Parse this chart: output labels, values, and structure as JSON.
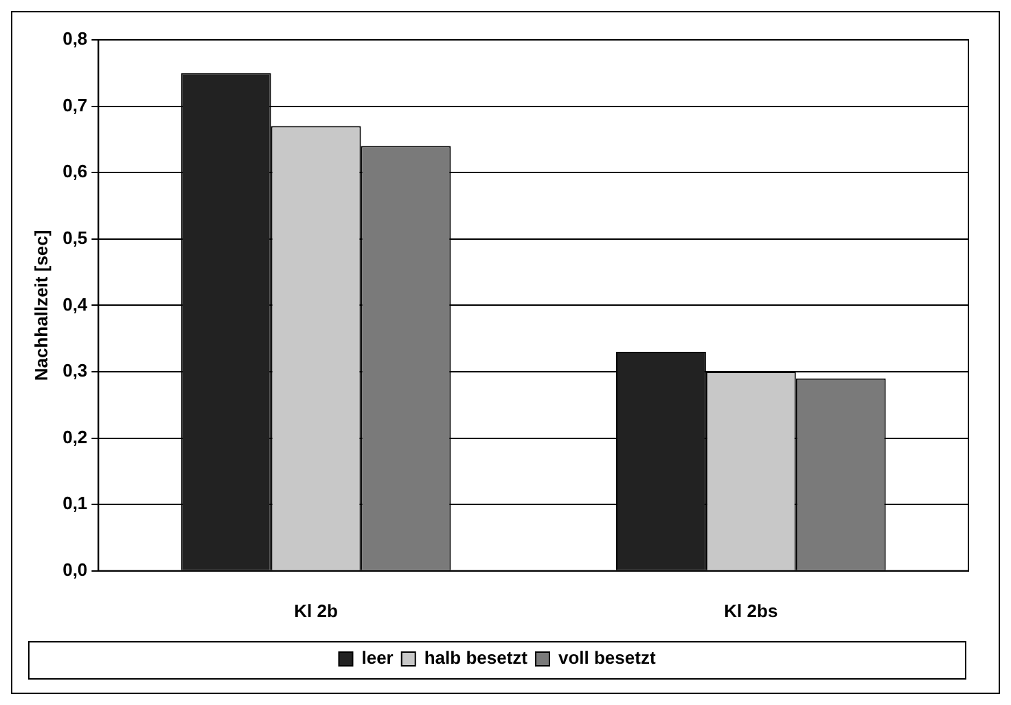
{
  "chart_data": {
    "type": "bar",
    "ylabel": "Nachhallzeit [sec]",
    "categories": [
      "Kl 2b",
      "Kl 2bs"
    ],
    "series": [
      {
        "name": "leer",
        "color": "#222222",
        "values": [
          0.75,
          0.33
        ]
      },
      {
        "name": "halb besetzt",
        "color": "#c8c8c8",
        "values": [
          0.67,
          0.3
        ]
      },
      {
        "name": "voll besetzt",
        "color": "#7a7a7a",
        "values": [
          0.64,
          0.29
        ]
      }
    ],
    "ylim": [
      0,
      0.8
    ],
    "yticks": [
      {
        "value": 0,
        "label": "0,0"
      },
      {
        "value": 0.1,
        "label": "0,1"
      },
      {
        "value": 0.2,
        "label": "0,2"
      },
      {
        "value": 0.3,
        "label": "0,3"
      },
      {
        "value": 0.4,
        "label": "0,4"
      },
      {
        "value": 0.5,
        "label": "0,5"
      },
      {
        "value": 0.6,
        "label": "0,6"
      },
      {
        "value": 0.7,
        "label": "0,7"
      },
      {
        "value": 0.8,
        "label": "0,8"
      }
    ],
    "grid": "y",
    "legend": "bottom"
  }
}
